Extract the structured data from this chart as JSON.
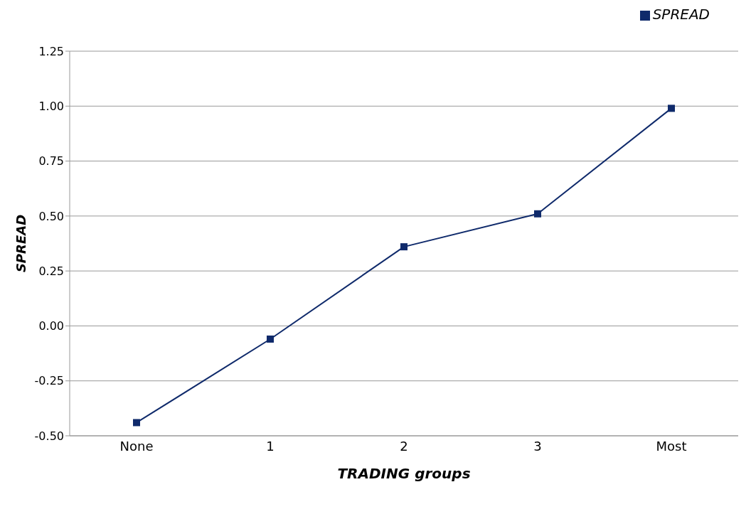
{
  "chart_data": {
    "type": "line",
    "xlabel": "TRADING groups",
    "ylabel": "SPREAD",
    "categories": [
      "None",
      "1",
      "2",
      "3",
      "Most"
    ],
    "series": [
      {
        "name": "SPREAD",
        "color": "#0f2a6b",
        "values": [
          -0.44,
          -0.06,
          0.36,
          0.51,
          0.99
        ]
      }
    ],
    "ylim": [
      -0.5,
      1.25
    ],
    "yticks": [
      {
        "value": -0.5,
        "label": "-0.50"
      },
      {
        "value": -0.25,
        "label": "-0.25"
      },
      {
        "value": 0,
        "label": "0.00"
      },
      {
        "value": 0.25,
        "label": "0.25"
      },
      {
        "value": 0.5,
        "label": "0.50"
      },
      {
        "value": 0.75,
        "label": "0.75"
      },
      {
        "value": 1,
        "label": "1.00"
      },
      {
        "value": 1.25,
        "label": "1.25"
      }
    ],
    "grid": "y",
    "legend": "top right",
    "marker": "square",
    "line_style": "solid"
  }
}
